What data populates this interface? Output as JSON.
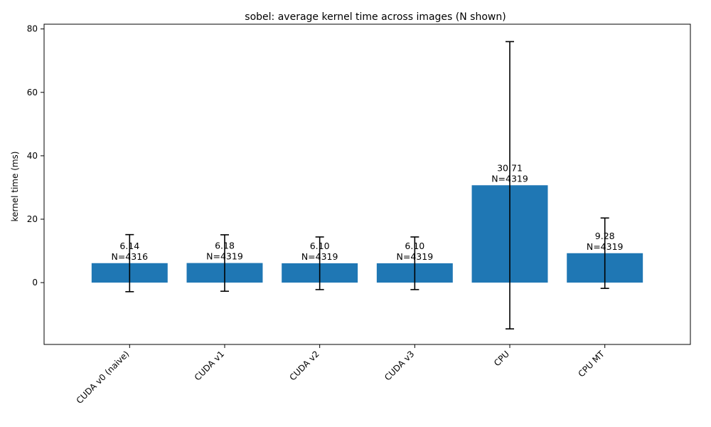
{
  "chart_data": {
    "type": "bar",
    "title": "sobel: average kernel time across images (N shown)",
    "xlabel": "",
    "ylabel": "kernel time (ms)",
    "ylim": [
      -19.5,
      81.5
    ],
    "yticks": [
      0,
      20,
      40,
      60,
      80
    ],
    "grid": false,
    "legend": "none",
    "bar_color": "#1f77b4",
    "error_color": "#000000",
    "categories": [
      "CUDA v0 (naive)",
      "CUDA v1",
      "CUDA v2",
      "CUDA v3",
      "CPU",
      "CPU MT"
    ],
    "values": [
      6.14,
      6.18,
      6.1,
      6.1,
      30.71,
      9.28
    ],
    "errors": [
      9.0,
      8.9,
      8.3,
      8.3,
      45.3,
      11.1
    ],
    "value_labels": [
      "6.14",
      "6.18",
      "6.10",
      "6.10",
      "30.71",
      "9.28"
    ],
    "n_labels": [
      "N=4316",
      "N=4319",
      "N=4319",
      "N=4319",
      "N=4319",
      "N=4319"
    ]
  }
}
